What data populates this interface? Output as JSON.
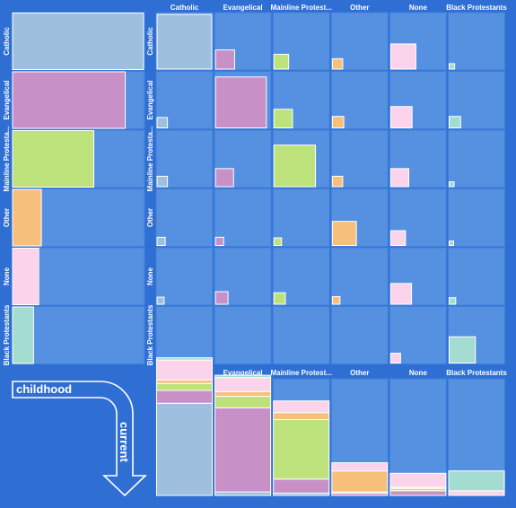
{
  "colors": {
    "background": "#2f6fd4",
    "cell": "#5591e0",
    "categories": {
      "Catholic": "#9ec0de",
      "Evangelical": "#c791c8",
      "Mainline Protestants": "#bde27c",
      "Other": "#f6c07c",
      "None": "#fbd3ea",
      "Black Protestants": "#a4dcd1"
    }
  },
  "flow": {
    "from_label": "childhood",
    "to_label": "current"
  },
  "chart_data": [
    {
      "type": "bar",
      "orientation": "horizontal",
      "description_role": "childhood religion share (left column)",
      "categories": [
        "Catholic",
        "Evangelical",
        "Mainline Protestants",
        "Other",
        "None",
        "Black Protestants"
      ],
      "tick_labels": [
        "Catholic",
        "Evangelical",
        "Mainline Protesta...",
        "Other",
        "None",
        "Black Protestants"
      ],
      "values": [
        1.0,
        0.86,
        0.62,
        0.22,
        0.2,
        0.16
      ]
    },
    {
      "type": "heatmap",
      "description_role": "childhood (rows) to current (columns) matrix, square area proportional to flow",
      "rows": [
        "Catholic",
        "Evangelical",
        "Mainline Protestants",
        "Other",
        "None",
        "Black Protestants"
      ],
      "row_tick_labels": [
        "Catholic",
        "Evangelical",
        "Mainline Protesta...",
        "Other",
        "None",
        "Black Protestants"
      ],
      "columns": [
        "Catholic",
        "Evangelical",
        "Mainline Protestants",
        "Other",
        "None",
        "Black Protestants"
      ],
      "column_tick_labels": [
        "Catholic",
        "Evangelical",
        "Mainline Protest...",
        "Other",
        "None",
        "Black Protestants"
      ],
      "values": [
        [
          1.0,
          0.35,
          0.27,
          0.19,
          0.46,
          0.1
        ],
        [
          0.19,
          0.93,
          0.34,
          0.21,
          0.39,
          0.21
        ],
        [
          0.19,
          0.33,
          0.76,
          0.19,
          0.33,
          0.09
        ],
        [
          0.15,
          0.15,
          0.14,
          0.44,
          0.27,
          0.07
        ],
        [
          0.13,
          0.23,
          0.21,
          0.14,
          0.38,
          0.12
        ],
        [
          0.0,
          0.0,
          0.0,
          0.0,
          0.18,
          0.48
        ]
      ]
    },
    {
      "type": "bar",
      "stacked": true,
      "description_role": "current religion composition by childhood religion (bottom row)",
      "categories": [
        "Catholic",
        "Evangelical",
        "Mainline Protestants",
        "Other",
        "None",
        "Black Protestants"
      ],
      "tick_labels": [
        "Catholic",
        "Evangelical",
        "Mainline Protest...",
        "Other",
        "None",
        "Black Protestants"
      ],
      "stack_order": [
        "Catholic",
        "Evangelical",
        "Mainline Protestants",
        "Other",
        "None",
        "Black Protestants"
      ],
      "values": [
        [
          0.79,
          0.03,
          0.02,
          0.0,
          0.0,
          0.0
        ],
        [
          0.11,
          0.72,
          0.12,
          0.02,
          0.04,
          0.0
        ],
        [
          0.06,
          0.1,
          0.51,
          0.01,
          0.02,
          0.0
        ],
        [
          0.03,
          0.04,
          0.06,
          0.18,
          0.01,
          0.0
        ],
        [
          0.17,
          0.12,
          0.1,
          0.07,
          0.12,
          0.04
        ],
        [
          0.02,
          0.02,
          0.0,
          0.0,
          0.0,
          0.17
        ]
      ]
    }
  ]
}
